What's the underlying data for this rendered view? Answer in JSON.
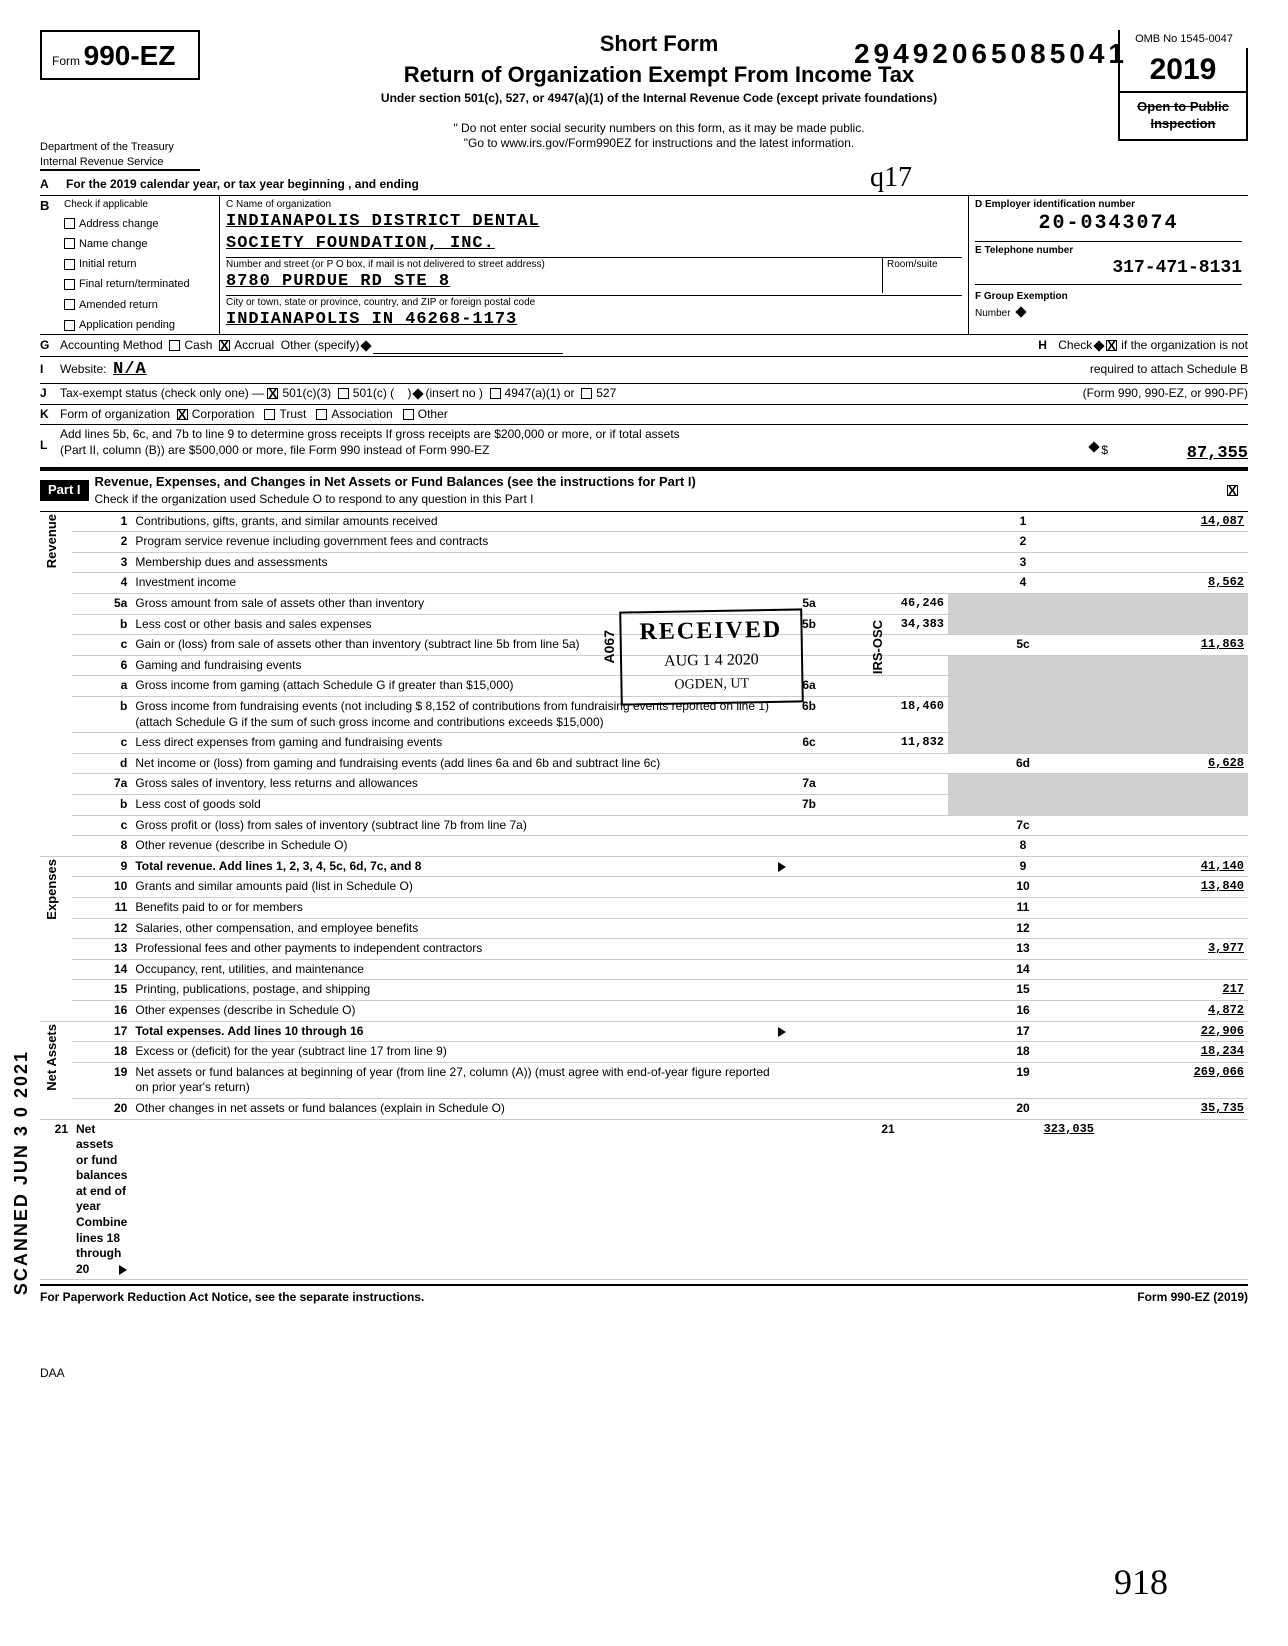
{
  "header": {
    "form_prefix": "Form",
    "form_number": "990-EZ",
    "dln": "29492065085041",
    "omb": "OMB No 1545-0047",
    "year": "2019",
    "title_short": "Short Form",
    "title_main": "Return of Organization Exempt From Income Tax",
    "subtitle": "Under section 501(c), 527, or 4947(a)(1) of the Internal Revenue Code (except private foundations)",
    "warn1": "\" Do not enter social security numbers on this form, as it may be made public.",
    "warn2": "\"Go to www.irs.gov/Form990EZ for instructions and the latest information.",
    "dept1": "Department of the Treasury",
    "dept2": "Internal Revenue Service",
    "open_public1": "Open to Public",
    "open_public2": "Inspection",
    "handwritten_initials": "q17"
  },
  "lineA": "For the 2019 calendar year, or tax year beginning                              , and ending",
  "boxB": {
    "header": "Check if applicable",
    "items": [
      "Address change",
      "Name change",
      "Initial return",
      "Final return/terminated",
      "Amended return",
      "Application pending"
    ]
  },
  "boxC": {
    "label_name": "C  Name of organization",
    "name1": "INDIANAPOLIS DISTRICT DENTAL",
    "name2": "SOCIETY FOUNDATION, INC.",
    "label_addr": "Number and street (or P O  box, if mail is not delivered to street address)",
    "room": "Room/suite",
    "addr": "8780 PURDUE RD STE 8",
    "label_city": "City or town, state or province, country, and ZIP or foreign postal code",
    "city": "INDIANAPOLIS           IN 46268-1173"
  },
  "boxD": {
    "label": "D  Employer identification number",
    "ein": "20-0343074"
  },
  "boxE": {
    "label": "E  Telephone number",
    "phone": "317-471-8131"
  },
  "boxF": {
    "label": "F  Group Exemption",
    "label2": "Number",
    "diamond": true
  },
  "lineG": {
    "label": "Accounting Method",
    "cash": "Cash",
    "accrual": "Accrual",
    "other": "Other (specify)",
    "accrual_checked": true
  },
  "lineH": {
    "label": "Check",
    "text1": "if the organization is not",
    "text2": "required to attach Schedule B",
    "text3": "(Form 990, 990-EZ, or 990-PF)",
    "checked": true
  },
  "lineI": {
    "label": "Website:",
    "value": "N/A"
  },
  "lineJ": {
    "label": "Tax-exempt status (check only one) —",
    "opt1": "501(c)(3)",
    "opt2": "501(c) (",
    "opt2b": ")",
    "insert": "(insert no )",
    "opt3": "4947(a)(1) or",
    "opt4": "527",
    "checked_501c3": true
  },
  "lineK": {
    "label": "Form of organization",
    "corp": "Corporation",
    "trust": "Trust",
    "assoc": "Association",
    "other": "Other",
    "corp_checked": true
  },
  "lineL": {
    "text1": "Add lines 5b, 6c, and 7b to line 9 to determine gross receipts  If gross receipts are $200,000 or more, or if total assets",
    "text2": "(Part II, column (B)) are $500,000 or more, file Form 990 instead of Form 990-EZ",
    "dollar": "$",
    "amount": "87,355"
  },
  "part1": {
    "label": "Part I",
    "title": "Revenue, Expenses, and Changes in Net Assets or Fund Balances (see the instructions for Part I)",
    "check_text": "Check if the organization used Schedule O to respond to any question in this Part I",
    "checked": true
  },
  "sections": {
    "revenue": "Revenue",
    "expenses": "Expenses",
    "netassets": "Net Assets"
  },
  "lines": [
    {
      "n": "1",
      "desc": "Contributions, gifts, grants, and similar amounts received",
      "col": "1",
      "val": "14,087"
    },
    {
      "n": "2",
      "desc": "Program service revenue including government fees and contracts",
      "col": "2",
      "val": ""
    },
    {
      "n": "3",
      "desc": "Membership dues and assessments",
      "col": "3",
      "val": ""
    },
    {
      "n": "4",
      "desc": "Investment income",
      "col": "4",
      "val": "8,562"
    },
    {
      "n": "5a",
      "desc": "Gross amount from sale of assets other than inventory",
      "sub": "5a",
      "subval": "46,246"
    },
    {
      "n": "b",
      "desc": "Less  cost or other basis and sales expenses",
      "sub": "5b",
      "subval": "34,383"
    },
    {
      "n": "c",
      "desc": "Gain or (loss) from sale of assets other than inventory (subtract line 5b from line 5a)",
      "col": "5c",
      "val": "11,863"
    },
    {
      "n": "6",
      "desc": "Gaming and fundraising events"
    },
    {
      "n": "a",
      "desc": "Gross income from gaming (attach Schedule G if greater than $15,000)",
      "sub": "6a",
      "subval": ""
    },
    {
      "n": "b",
      "desc": "Gross income from fundraising events (not including $    8,152  of contributions from fundraising events reported on line 1) (attach Schedule G if the sum of such gross income and contributions exceeds $15,000)",
      "sub": "6b",
      "subval": "18,460"
    },
    {
      "n": "c",
      "desc": "Less  direct expenses from gaming and fundraising events",
      "sub": "6c",
      "subval": "11,832"
    },
    {
      "n": "d",
      "desc": "Net income or (loss) from gaming and fundraising events (add lines 6a and 6b and subtract line 6c)",
      "col": "6d",
      "val": "6,628"
    },
    {
      "n": "7a",
      "desc": "Gross sales of inventory, less returns and allowances",
      "sub": "7a",
      "subval": ""
    },
    {
      "n": "b",
      "desc": "Less  cost of goods sold",
      "sub": "7b",
      "subval": ""
    },
    {
      "n": "c",
      "desc": "Gross profit or (loss) from sales of inventory (subtract line 7b from line 7a)",
      "col": "7c",
      "val": ""
    },
    {
      "n": "8",
      "desc": "Other revenue (describe in Schedule O)",
      "col": "8",
      "val": ""
    },
    {
      "n": "9",
      "desc": "Total revenue. Add lines 1, 2, 3, 4, 5c, 6d, 7c, and 8",
      "col": "9",
      "val": "41,140",
      "arrow": true,
      "bold": true
    },
    {
      "n": "10",
      "desc": "Grants and similar amounts paid (list in Schedule O)",
      "col": "10",
      "val": "13,840"
    },
    {
      "n": "11",
      "desc": "Benefits paid to or for members",
      "col": "11",
      "val": ""
    },
    {
      "n": "12",
      "desc": "Salaries, other compensation, and employee benefits",
      "col": "12",
      "val": ""
    },
    {
      "n": "13",
      "desc": "Professional fees and other payments to independent contractors",
      "col": "13",
      "val": "3,977"
    },
    {
      "n": "14",
      "desc": "Occupancy, rent, utilities, and maintenance",
      "col": "14",
      "val": ""
    },
    {
      "n": "15",
      "desc": "Printing, publications, postage, and shipping",
      "col": "15",
      "val": "217"
    },
    {
      "n": "16",
      "desc": "Other expenses (describe in Schedule O)",
      "col": "16",
      "val": "4,872"
    },
    {
      "n": "17",
      "desc": "Total expenses. Add lines 10 through 16",
      "col": "17",
      "val": "22,906",
      "arrow": true,
      "bold": true
    },
    {
      "n": "18",
      "desc": "Excess or (deficit) for the year (subtract line 17 from line 9)",
      "col": "18",
      "val": "18,234"
    },
    {
      "n": "19",
      "desc": "Net assets or fund balances at beginning of year (from line 27, column (A)) (must agree with end-of-year figure reported on prior year's return)",
      "col": "19",
      "val": "269,066"
    },
    {
      "n": "20",
      "desc": "Other changes in net assets or fund balances (explain in Schedule O)",
      "col": "20",
      "val": "35,735"
    },
    {
      "n": "21",
      "desc": "Net assets or fund balances at end of year  Combine lines 18 through 20",
      "col": "21",
      "val": "323,035",
      "arrow": true,
      "bold": true
    }
  ],
  "stamp": {
    "received": "RECEIVED",
    "code": "A067",
    "date": "AUG 1 4 2020",
    "loc": "OGDEN, UT",
    "osc": "IRS-OSC"
  },
  "footer": {
    "left": "For Paperwork Reduction Act Notice, see the separate instructions.",
    "daa": "DAA",
    "right": "Form 990-EZ (2019)",
    "handwritten": "918"
  },
  "scanned": "SCANNED JUN 3 0 2021"
}
